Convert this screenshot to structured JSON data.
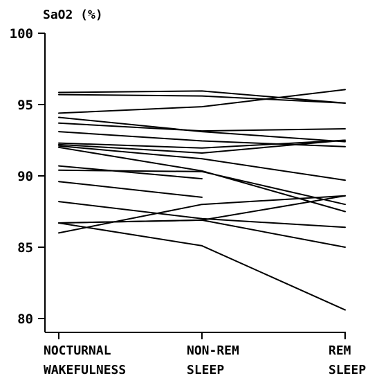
{
  "chart_data": {
    "type": "line",
    "ylabel": "SaO2  (%)",
    "xlabel": "",
    "categories": [
      "NOCTURNAL WAKEFULNESS",
      "NON-REM SLEEP",
      "REM SLEEP"
    ],
    "category_lines": [
      [
        "NOCTURNAL",
        "WAKEFULNESS"
      ],
      [
        "NON-REM",
        "SLEEP"
      ],
      [
        "REM",
        "SLEEP"
      ]
    ],
    "y_ticks": [
      "80",
      "85",
      "90",
      "95",
      "100"
    ],
    "ylim": [
      80,
      100
    ],
    "grid": false,
    "series": [
      {
        "values": [
          95.85,
          95.95,
          95.1
        ]
      },
      {
        "values": [
          95.7,
          95.6,
          95.1
        ]
      },
      {
        "values": [
          94.4,
          94.85,
          96.05
        ]
      },
      {
        "values": [
          94.1,
          93.1,
          92.4
        ]
      },
      {
        "values": [
          93.7,
          93.15,
          93.3
        ]
      },
      {
        "values": [
          93.1,
          92.45,
          92.05
        ]
      },
      {
        "values": [
          92.3,
          91.95,
          92.5
        ]
      },
      {
        "values": [
          92.2,
          91.6,
          92.5
        ]
      },
      {
        "values": [
          92.1,
          91.2,
          89.7
        ]
      },
      {
        "values": [
          92.0,
          90.35,
          87.5
        ]
      },
      {
        "values": [
          90.7,
          89.8,
          null
        ]
      },
      {
        "values": [
          90.4,
          90.3,
          88.0
        ]
      },
      {
        "values": [
          89.6,
          88.5,
          null
        ]
      },
      {
        "values": [
          88.2,
          87.0,
          86.4
        ]
      },
      {
        "values": [
          86.7,
          86.9,
          88.6
        ]
      },
      {
        "values": [
          86.0,
          88.0,
          88.6
        ]
      },
      {
        "values": [
          86.7,
          85.1,
          80.6
        ]
      },
      {
        "values": [
          86.7,
          86.9,
          85.0
        ]
      }
    ]
  }
}
